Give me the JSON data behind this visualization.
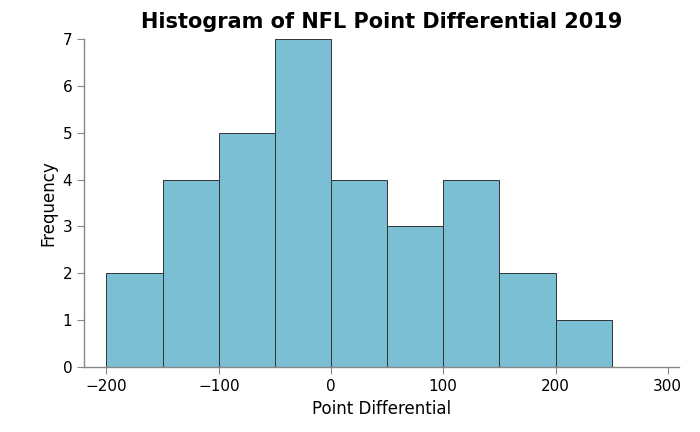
{
  "title": "Histogram of NFL Point Differential 2019",
  "xlabel": "Point Differential",
  "ylabel": "Frequency",
  "bin_edges": [
    -200,
    -150,
    -100,
    -50,
    0,
    50,
    100,
    150,
    200,
    250
  ],
  "counts": [
    2,
    4,
    5,
    7,
    4,
    3,
    4,
    2,
    1
  ],
  "bar_color": "#7BBFD4",
  "bar_edgecolor": "#333333",
  "xlim": [
    -220,
    310
  ],
  "ylim": [
    0,
    7
  ],
  "xticks": [
    -200,
    -100,
    0,
    100,
    200,
    300
  ],
  "yticks": [
    0,
    1,
    2,
    3,
    4,
    5,
    6,
    7
  ],
  "title_fontsize": 15,
  "axis_label_fontsize": 12,
  "tick_fontsize": 11,
  "title_fontweight": "bold"
}
